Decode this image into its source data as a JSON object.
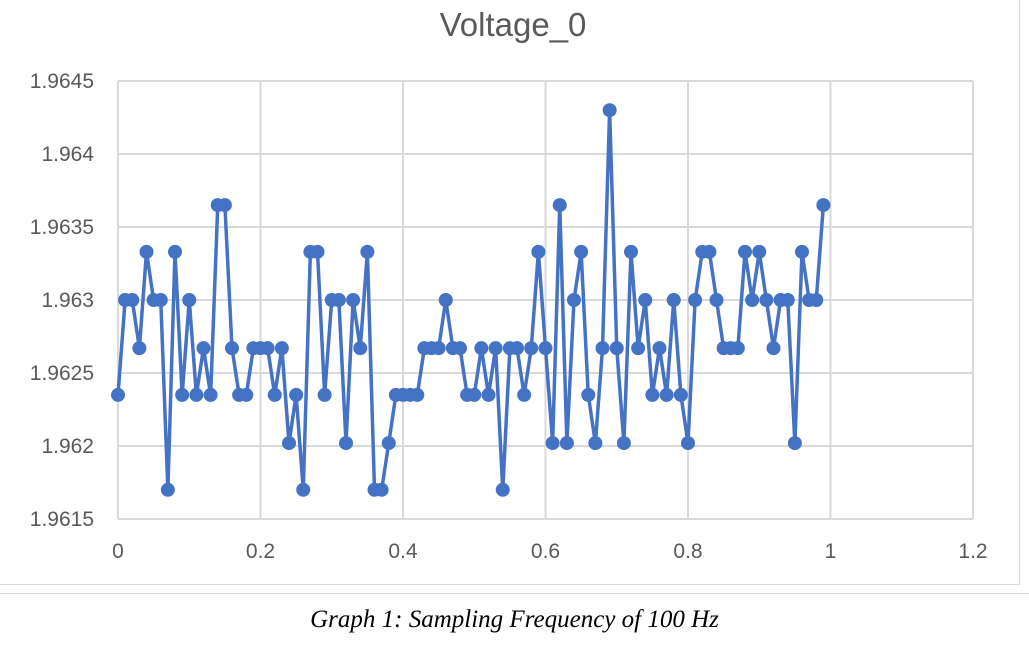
{
  "caption": "Graph 1: Sampling Frequency of 100 Hz",
  "chart_data": {
    "type": "line",
    "title": "Voltage_0",
    "xlabel": "",
    "ylabel": "",
    "xlim": [
      0,
      1.2
    ],
    "ylim": [
      1.9615,
      1.9645
    ],
    "xticks": [
      "0",
      "0.2",
      "0.4",
      "0.6",
      "0.8",
      "1",
      "1.2"
    ],
    "yticks": [
      "1.9615",
      "1.962",
      "1.9625",
      "1.963",
      "1.9635",
      "1.964",
      "1.9645"
    ],
    "grid": true,
    "legend": "none",
    "series": [
      {
        "color": "#4472c4",
        "marker": "circle",
        "x": [
          0,
          0.01,
          0.02,
          0.03,
          0.04,
          0.05,
          0.06,
          0.07,
          0.08,
          0.09,
          0.1,
          0.11,
          0.12,
          0.13,
          0.14,
          0.15,
          0.16,
          0.17,
          0.18,
          0.19,
          0.2,
          0.21,
          0.22,
          0.23,
          0.24,
          0.25,
          0.26,
          0.27,
          0.28,
          0.29,
          0.3,
          0.31,
          0.32,
          0.33,
          0.34,
          0.35,
          0.36,
          0.37,
          0.38,
          0.39,
          0.4,
          0.41,
          0.42,
          0.43,
          0.44,
          0.45,
          0.46,
          0.47,
          0.48,
          0.49,
          0.5,
          0.51,
          0.52,
          0.53,
          0.54,
          0.55,
          0.56,
          0.57,
          0.58,
          0.59,
          0.6,
          0.61,
          0.62,
          0.63,
          0.64,
          0.65,
          0.66,
          0.67,
          0.68,
          0.69,
          0.7,
          0.71,
          0.72,
          0.73,
          0.74,
          0.75,
          0.76,
          0.77,
          0.78,
          0.79,
          0.8,
          0.81,
          0.82,
          0.83,
          0.84,
          0.85,
          0.86,
          0.87,
          0.88,
          0.89,
          0.9,
          0.91,
          0.92,
          0.93,
          0.94,
          0.95,
          0.96,
          0.97,
          0.98,
          0.99
        ],
        "y": [
          1.96235,
          1.963,
          1.963,
          1.96267,
          1.96333,
          1.963,
          1.963,
          1.9617,
          1.96333,
          1.96235,
          1.963,
          1.96235,
          1.96267,
          1.96235,
          1.96365,
          1.96365,
          1.96267,
          1.96235,
          1.96235,
          1.96267,
          1.96267,
          1.96267,
          1.96235,
          1.96267,
          1.96202,
          1.96235,
          1.9617,
          1.96333,
          1.96333,
          1.96235,
          1.963,
          1.963,
          1.96202,
          1.963,
          1.96267,
          1.96333,
          1.9617,
          1.9617,
          1.96202,
          1.96235,
          1.96235,
          1.96235,
          1.96235,
          1.96267,
          1.96267,
          1.96267,
          1.963,
          1.96267,
          1.96267,
          1.96235,
          1.96235,
          1.96267,
          1.96235,
          1.96267,
          1.9617,
          1.96267,
          1.96267,
          1.96235,
          1.96267,
          1.96333,
          1.96267,
          1.96202,
          1.96365,
          1.96202,
          1.963,
          1.96333,
          1.96235,
          1.96202,
          1.96267,
          1.9643,
          1.96267,
          1.96202,
          1.96333,
          1.96267,
          1.963,
          1.96235,
          1.96267,
          1.96235,
          1.963,
          1.96235,
          1.96202,
          1.963,
          1.96333,
          1.96333,
          1.963,
          1.96267,
          1.96267,
          1.96267,
          1.96333,
          1.963,
          1.96333,
          1.963,
          1.96267,
          1.963,
          1.963,
          1.96202,
          1.96333,
          1.963,
          1.963,
          1.96365
        ]
      }
    ]
  }
}
